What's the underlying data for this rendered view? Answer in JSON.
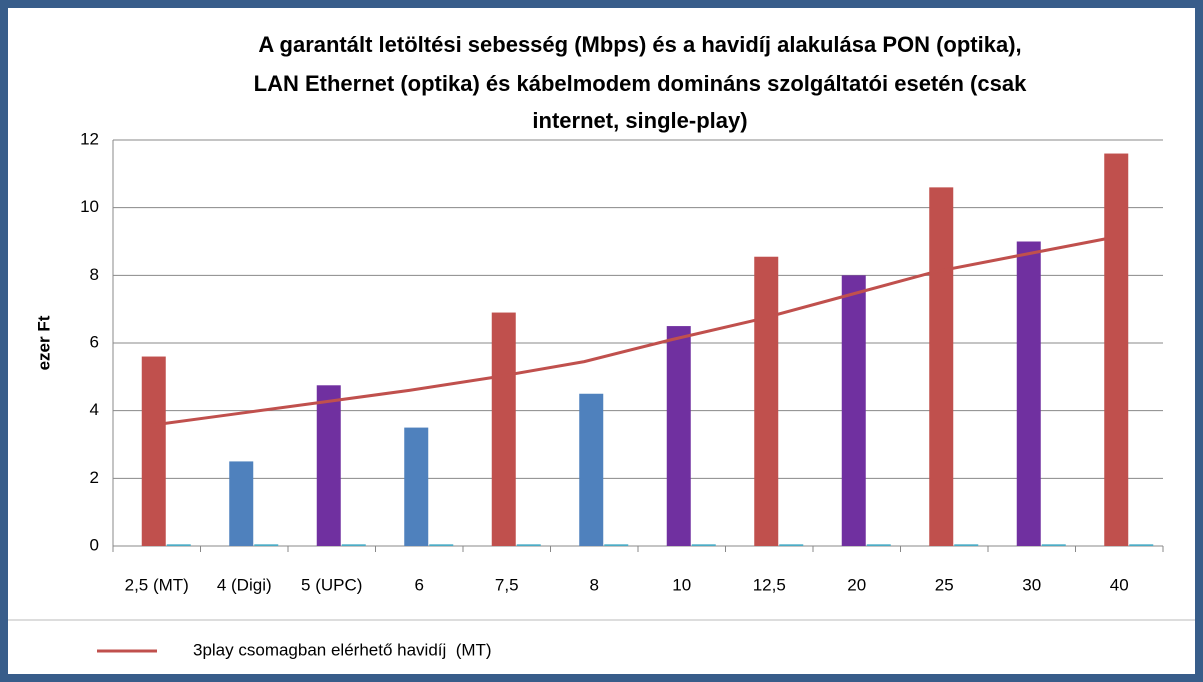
{
  "chart_data": {
    "type": "bar",
    "title": [
      "A garantált letöltési sebesség (Mbps) és a havidíj alakulása PON (optika),",
      "LAN Ethernet (optika) és kábelmodem domináns szolgáltatói esetén (csak",
      "internet, single-play)"
    ],
    "y_label": "ezer Ft",
    "categories": [
      "2,5 (MT)",
      "4 (Digi)",
      "5 (UPC)",
      "6",
      "7,5",
      "8",
      "10",
      "12,5",
      "20",
      "25",
      "30",
      "40"
    ],
    "bars": [
      {
        "values": [
          5.6,
          2.5,
          4.75,
          3.5,
          6.9,
          4.5,
          6.5,
          8.55,
          8.0,
          10.6,
          9.0,
          11.6
        ],
        "colors": [
          "#c0504d",
          "#4f81bd",
          "#7030a0",
          "#4f81bd",
          "#c0504d",
          "#4f81bd",
          "#7030a0",
          "#c0504d",
          "#7030a0",
          "#c0504d",
          "#7030a0",
          "#c0504d"
        ]
      },
      {
        "values": [
          0.05,
          0.05,
          0.05,
          0.05,
          0.05,
          0.05,
          0.05,
          0.05,
          0.05,
          0.05,
          0.05,
          0.05
        ],
        "color": "#4bacc6"
      }
    ],
    "series": [
      {
        "name": "3play csomagban elérhető havidíj  (MT)",
        "color": "#c0504d",
        "values": [
          3.55,
          3.9,
          4.25,
          4.6,
          5.0,
          5.45,
          6.1,
          6.7,
          7.4,
          8.1,
          8.6,
          9.1
        ]
      }
    ],
    "ylim": [
      0,
      12
    ],
    "yticks": [
      0,
      2,
      4,
      6,
      8,
      10,
      12
    ],
    "grid": true,
    "legend": "bottom"
  }
}
